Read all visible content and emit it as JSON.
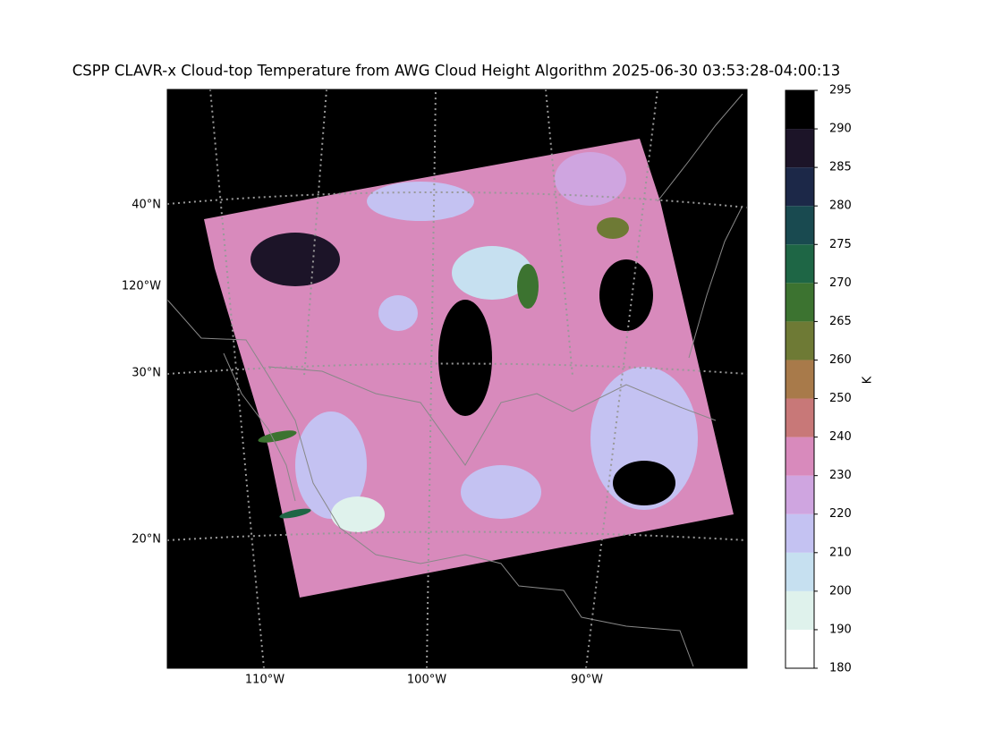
{
  "title": "CSPP CLAVR-x Cloud-top Temperature from AWG Cloud Height Algorithm 2025-06-30 03:53:28-04:00:13",
  "map": {
    "lat_labels": [
      "40°N",
      "30°N",
      "20°N"
    ],
    "lon_label_left": "120°W",
    "lon_labels_bottom": [
      "110°W",
      "100°W",
      "90°W"
    ]
  },
  "colorbar": {
    "label": "K",
    "bounds": [
      180,
      190,
      200,
      210,
      220,
      230,
      240,
      250,
      260,
      265,
      270,
      275,
      280,
      285,
      290,
      295
    ],
    "colors": [
      "#ffffff",
      "#dff2ec",
      "#c6e0f0",
      "#c4c2f2",
      "#cfa5e0",
      "#d88abc",
      "#c87878",
      "#a87a4a",
      "#6e7a35",
      "#3c7330",
      "#1e6645",
      "#194a50",
      "#1c2848",
      "#1c1428",
      "#000000"
    ]
  }
}
